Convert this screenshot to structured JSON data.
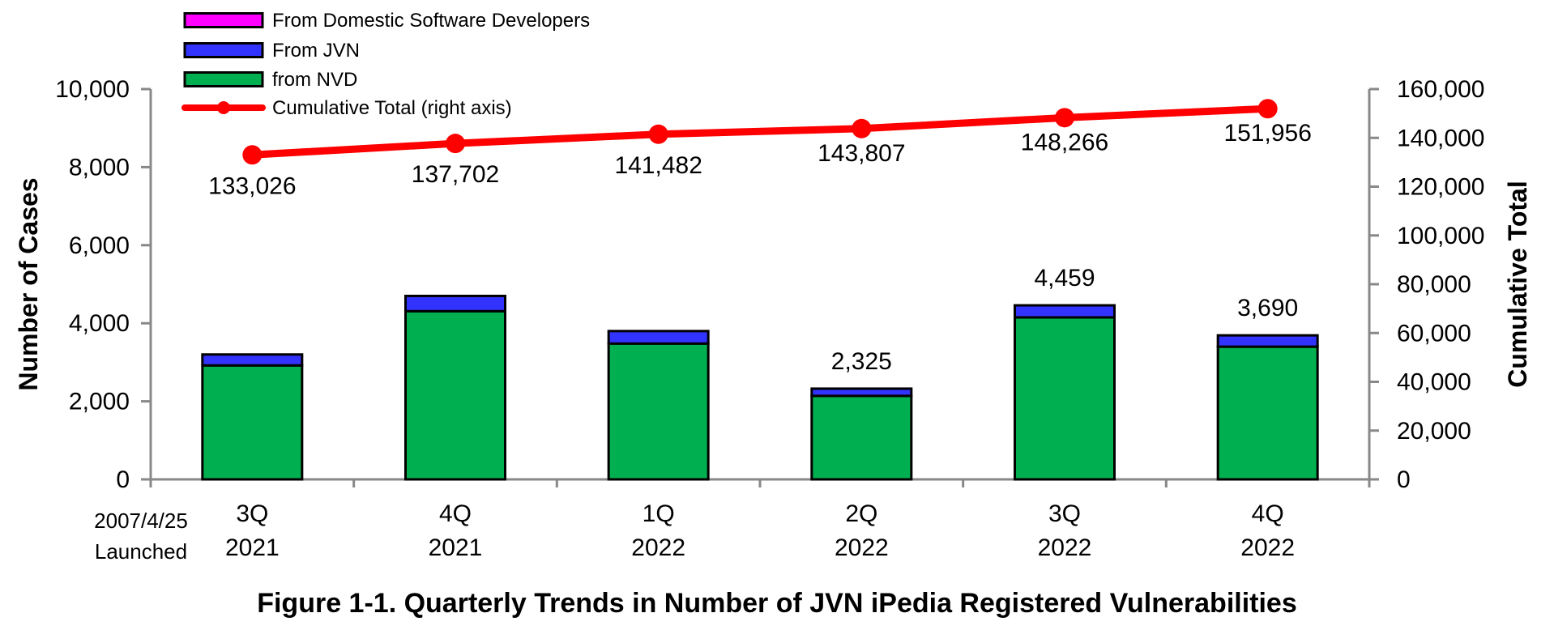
{
  "chart_data": {
    "type": "bar",
    "title": "Figure 1-1. Quarterly Trends in Number of JVN iPedia Registered Vulnerabilities",
    "ylabel": "Number of Cases",
    "y2label": "Cumulative Total",
    "ylim": [
      0,
      10000
    ],
    "y2lim": [
      0,
      160000
    ],
    "yticks": [
      "0",
      "2,000",
      "4,000",
      "6,000",
      "8,000",
      "10,000"
    ],
    "y2ticks": [
      "0",
      "20,000",
      "40,000",
      "60,000",
      "80,000",
      "100,000",
      "120,000",
      "140,000",
      "160,000"
    ],
    "x_prefix_label": [
      "2007/4/25",
      "Launched"
    ],
    "categories": [
      [
        "3Q",
        "2021"
      ],
      [
        "4Q",
        "2021"
      ],
      [
        "1Q",
        "2022"
      ],
      [
        "2Q",
        "2022"
      ],
      [
        "3Q",
        "2022"
      ],
      [
        "4Q",
        "2022"
      ]
    ],
    "stacked": true,
    "series": [
      {
        "name": "from NVD",
        "color": "#00b050",
        "values": [
          2920,
          4310,
          3480,
          2140,
          4150,
          3400
        ]
      },
      {
        "name": "From JVN",
        "color": "#3333ff",
        "values": [
          280,
          390,
          320,
          185,
          309,
          290
        ]
      },
      {
        "name": "From Domestic Software Developers",
        "color": "#ff00ff",
        "values": [
          0,
          0,
          0,
          0,
          0,
          0
        ]
      }
    ],
    "bar_totals_labels": [
      "",
      "",
      "",
      "2,325",
      "4,459",
      "3,690"
    ],
    "bar_totals": [
      3200,
      4700,
      3800,
      2325,
      4459,
      3690
    ],
    "line_series": {
      "name": "Cumulative Total (right axis)",
      "color": "#ff0000",
      "axis": "right",
      "values": [
        133026,
        137702,
        141482,
        143807,
        148266,
        151956
      ],
      "labels": [
        "133,026",
        "137,702",
        "141,482",
        "143,807",
        "148,266",
        "151,956"
      ]
    },
    "legend": {
      "placement": "top-left",
      "entries": [
        "From Domestic Software Developers",
        "From JVN",
        "from NVD",
        "Cumulative Total (right axis)"
      ]
    },
    "grid": false
  }
}
